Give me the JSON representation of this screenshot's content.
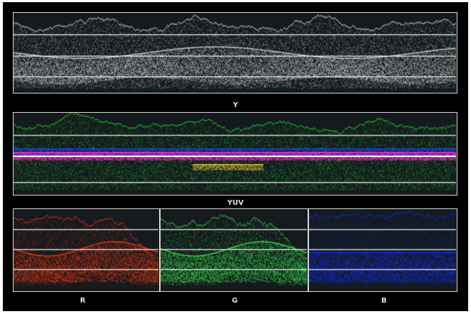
{
  "scopes": {
    "luma": {
      "label": "Y",
      "color": "#e8e8e8"
    },
    "yuv": {
      "label": "YUV",
      "colors": [
        "#22d830",
        "#ff30d0",
        "#2040ff",
        "#ffd040"
      ]
    },
    "red": {
      "label": "R",
      "color": "#ff3a10"
    },
    "green": {
      "label": "G",
      "color": "#40f050"
    },
    "blue": {
      "label": "B",
      "color": "#1530ff"
    }
  }
}
